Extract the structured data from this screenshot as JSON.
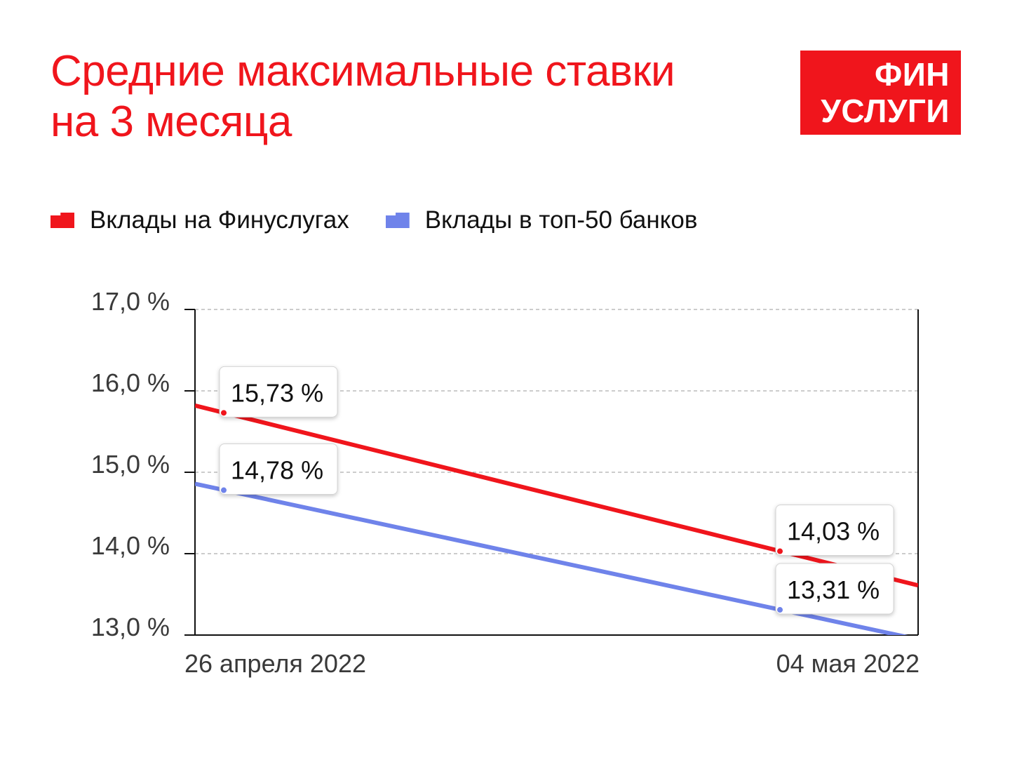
{
  "title": {
    "line1": "Средние максимальные ставки",
    "line2": "на 3 месяца"
  },
  "logo": {
    "line1": "ФИН",
    "line2": "УСЛУГИ"
  },
  "colors": {
    "accent": "#f0151c",
    "series_red": "#f0151c",
    "series_blue": "#6f83ea"
  },
  "legend": [
    {
      "label": "Вклады на Финуслугах",
      "color": "#f0151c"
    },
    {
      "label": "Вклады в топ-50 банков",
      "color": "#6f83ea"
    }
  ],
  "chart_data": {
    "type": "line",
    "x": [
      "26 апреля 2022",
      "04 мая 2022"
    ],
    "series": [
      {
        "name": "Вклады на Финуслугах",
        "values": [
          15.73,
          14.03
        ],
        "labels": [
          "15,73 %",
          "14,03 %"
        ],
        "color": "#f0151c"
      },
      {
        "name": "Вклады в топ-50 банков",
        "values": [
          14.78,
          13.31
        ],
        "labels": [
          "14,78 %",
          "13,31 %"
        ],
        "color": "#6f83ea"
      }
    ],
    "yticks": [
      17.0,
      16.0,
      15.0,
      14.0,
      13.0
    ],
    "ytick_labels": [
      "17,0 %",
      "16,0 %",
      "15,0 %",
      "14,0 %",
      "13,0 %"
    ],
    "ylim": [
      13.0,
      17.0
    ],
    "grid": true,
    "legend_position": "top-left"
  }
}
